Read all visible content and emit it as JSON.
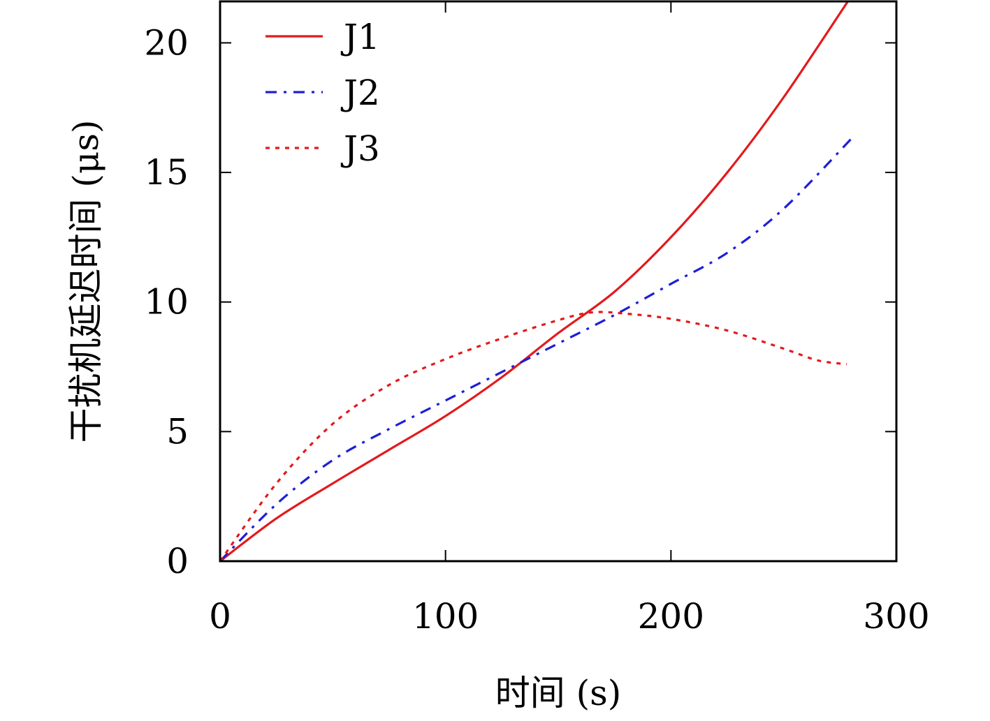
{
  "chart_data": {
    "type": "line",
    "xlabel": "时间 (s)",
    "ylabel": "干扰机延迟时间 (μs)",
    "xlim": [
      0,
      300
    ],
    "ylim": [
      0,
      21.6
    ],
    "x_ticks": [
      0,
      100,
      200,
      300
    ],
    "y_ticks": [
      0,
      5,
      10,
      15,
      20
    ],
    "x_tick_labels": [
      "0",
      "100",
      "200",
      "300"
    ],
    "y_tick_labels": [
      "0",
      "5",
      "10",
      "15",
      "20"
    ],
    "grid": false,
    "legend_position": "top-left",
    "series": [
      {
        "name": "J1",
        "color": "#e31a1c",
        "style": "solid",
        "x": [
          0,
          25,
          50,
          75,
          100,
          125,
          150,
          175,
          200,
          225,
          250,
          280
        ],
        "y": [
          0,
          1.65,
          3.0,
          4.3,
          5.6,
          7.1,
          8.8,
          10.4,
          12.5,
          15.0,
          17.9,
          21.8
        ]
      },
      {
        "name": "J2",
        "color": "#1f1fd6",
        "style": "dashdot",
        "x": [
          0,
          25,
          50,
          75,
          100,
          125,
          150,
          175,
          200,
          225,
          250,
          280
        ],
        "y": [
          0,
          2.2,
          3.9,
          5.1,
          6.2,
          7.3,
          8.4,
          9.5,
          10.7,
          11.9,
          13.6,
          16.3
        ]
      },
      {
        "name": "J3",
        "color": "#e31a1c",
        "style": "dotted",
        "x": [
          0,
          25,
          50,
          75,
          100,
          125,
          150,
          165,
          180,
          200,
          225,
          250,
          265,
          278
        ],
        "y": [
          0,
          3.0,
          5.3,
          6.8,
          7.8,
          8.6,
          9.3,
          9.6,
          9.55,
          9.35,
          8.9,
          8.2,
          7.75,
          7.6
        ]
      }
    ]
  }
}
